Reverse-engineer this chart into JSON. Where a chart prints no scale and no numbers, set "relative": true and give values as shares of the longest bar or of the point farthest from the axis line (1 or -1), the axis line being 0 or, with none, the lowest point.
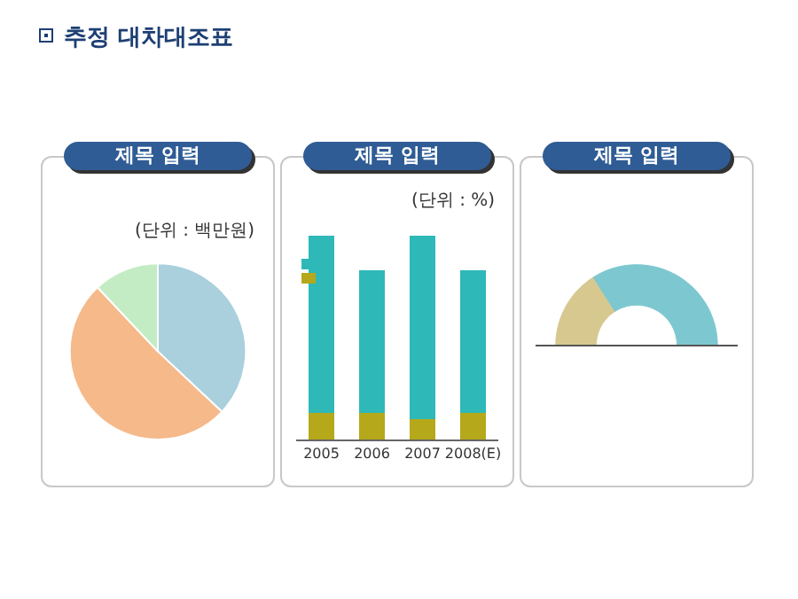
{
  "chart_data": [
    {
      "type": "pie",
      "title": "제목 입력",
      "annotations": [
        "추정 대차대조표",
        "(단위 : 백만원)"
      ],
      "categories": [
        null,
        null,
        null
      ],
      "values": [
        37,
        51,
        12
      ],
      "colors": [
        "#a9d0dc",
        "#f5b98a",
        "#c4ecc4"
      ]
    },
    {
      "type": "bar",
      "title": "제목 입력",
      "annotations": [
        "(단위 : %)"
      ],
      "categories": [
        "2005",
        "2006",
        "2007",
        "2008(E)"
      ],
      "stacked": true,
      "relative": true,
      "series": [
        {
          "color": "#b5a81a",
          "values": [
            0.13,
            0.13,
            0.1,
            0.13
          ]
        },
        {
          "color": "#2fb8b8",
          "values": [
            0.87,
            0.7,
            0.9,
            0.7
          ]
        }
      ]
    },
    {
      "type": "donut",
      "title": "제목 입력",
      "categories": [
        null,
        null
      ],
      "values": [
        32,
        68
      ],
      "colors": [
        "#d6c88e",
        "#7dc8d0"
      ]
    }
  ]
}
